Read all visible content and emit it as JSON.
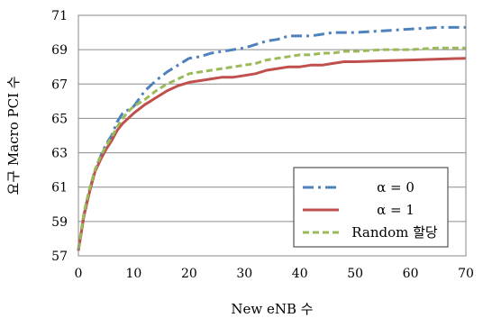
{
  "chart_data": {
    "type": "line",
    "xlabel": "New eNB 수",
    "ylabel": "요구 Macro PCI 수",
    "xlim": [
      0,
      70
    ],
    "ylim": [
      57,
      71
    ],
    "xticks": [
      0,
      10,
      20,
      30,
      40,
      50,
      60,
      70
    ],
    "yticks": [
      57,
      59,
      61,
      63,
      65,
      67,
      69,
      71
    ],
    "grid": "horizontal",
    "legend_position": "bottom-right",
    "series": [
      {
        "name": "α = 0",
        "color": "#4F81BD",
        "style": "dash-dot",
        "x": [
          0,
          1,
          2,
          3,
          4,
          5,
          6,
          7,
          8,
          9,
          10,
          12,
          14,
          16,
          18,
          20,
          22,
          24,
          26,
          28,
          30,
          32,
          34,
          36,
          38,
          40,
          42,
          44,
          46,
          48,
          50,
          55,
          60,
          65,
          70
        ],
        "y": [
          57.3,
          59.4,
          60.8,
          62.0,
          62.8,
          63.5,
          64.0,
          64.8,
          65.3,
          65.5,
          65.7,
          66.6,
          67.2,
          67.7,
          68.1,
          68.5,
          68.6,
          68.8,
          68.9,
          69.0,
          69.1,
          69.3,
          69.5,
          69.6,
          69.8,
          69.8,
          69.8,
          69.9,
          70.0,
          70.0,
          70.0,
          70.1,
          70.2,
          70.3,
          70.3
        ]
      },
      {
        "name": "α = 1",
        "color": "#C0504D",
        "style": "solid",
        "x": [
          0,
          1,
          2,
          3,
          4,
          5,
          6,
          7,
          8,
          9,
          10,
          12,
          14,
          16,
          18,
          20,
          22,
          24,
          26,
          28,
          30,
          32,
          34,
          36,
          38,
          40,
          42,
          44,
          46,
          48,
          50,
          55,
          60,
          65,
          70
        ],
        "y": [
          57.3,
          59.3,
          60.7,
          61.9,
          62.6,
          63.2,
          63.7,
          64.3,
          64.7,
          65.0,
          65.3,
          65.8,
          66.2,
          66.6,
          66.9,
          67.1,
          67.2,
          67.3,
          67.4,
          67.4,
          67.5,
          67.6,
          67.8,
          67.9,
          68.0,
          68.0,
          68.1,
          68.1,
          68.2,
          68.3,
          68.3,
          68.35,
          68.4,
          68.45,
          68.5
        ]
      },
      {
        "name": "Random 할당",
        "color": "#9BBB59",
        "style": "dashed",
        "x": [
          0,
          1,
          2,
          3,
          4,
          5,
          6,
          7,
          8,
          9,
          10,
          12,
          14,
          16,
          18,
          20,
          22,
          24,
          26,
          28,
          30,
          32,
          34,
          36,
          38,
          40,
          42,
          44,
          46,
          48,
          50,
          55,
          60,
          65,
          70
        ],
        "y": [
          57.4,
          59.5,
          60.9,
          62.0,
          62.8,
          63.4,
          63.9,
          64.5,
          65.0,
          65.4,
          65.7,
          66.1,
          66.6,
          67.0,
          67.3,
          67.6,
          67.7,
          67.8,
          67.9,
          68.0,
          68.1,
          68.2,
          68.4,
          68.5,
          68.6,
          68.7,
          68.7,
          68.8,
          68.8,
          68.9,
          68.9,
          69.0,
          69.0,
          69.1,
          69.1
        ]
      }
    ]
  }
}
